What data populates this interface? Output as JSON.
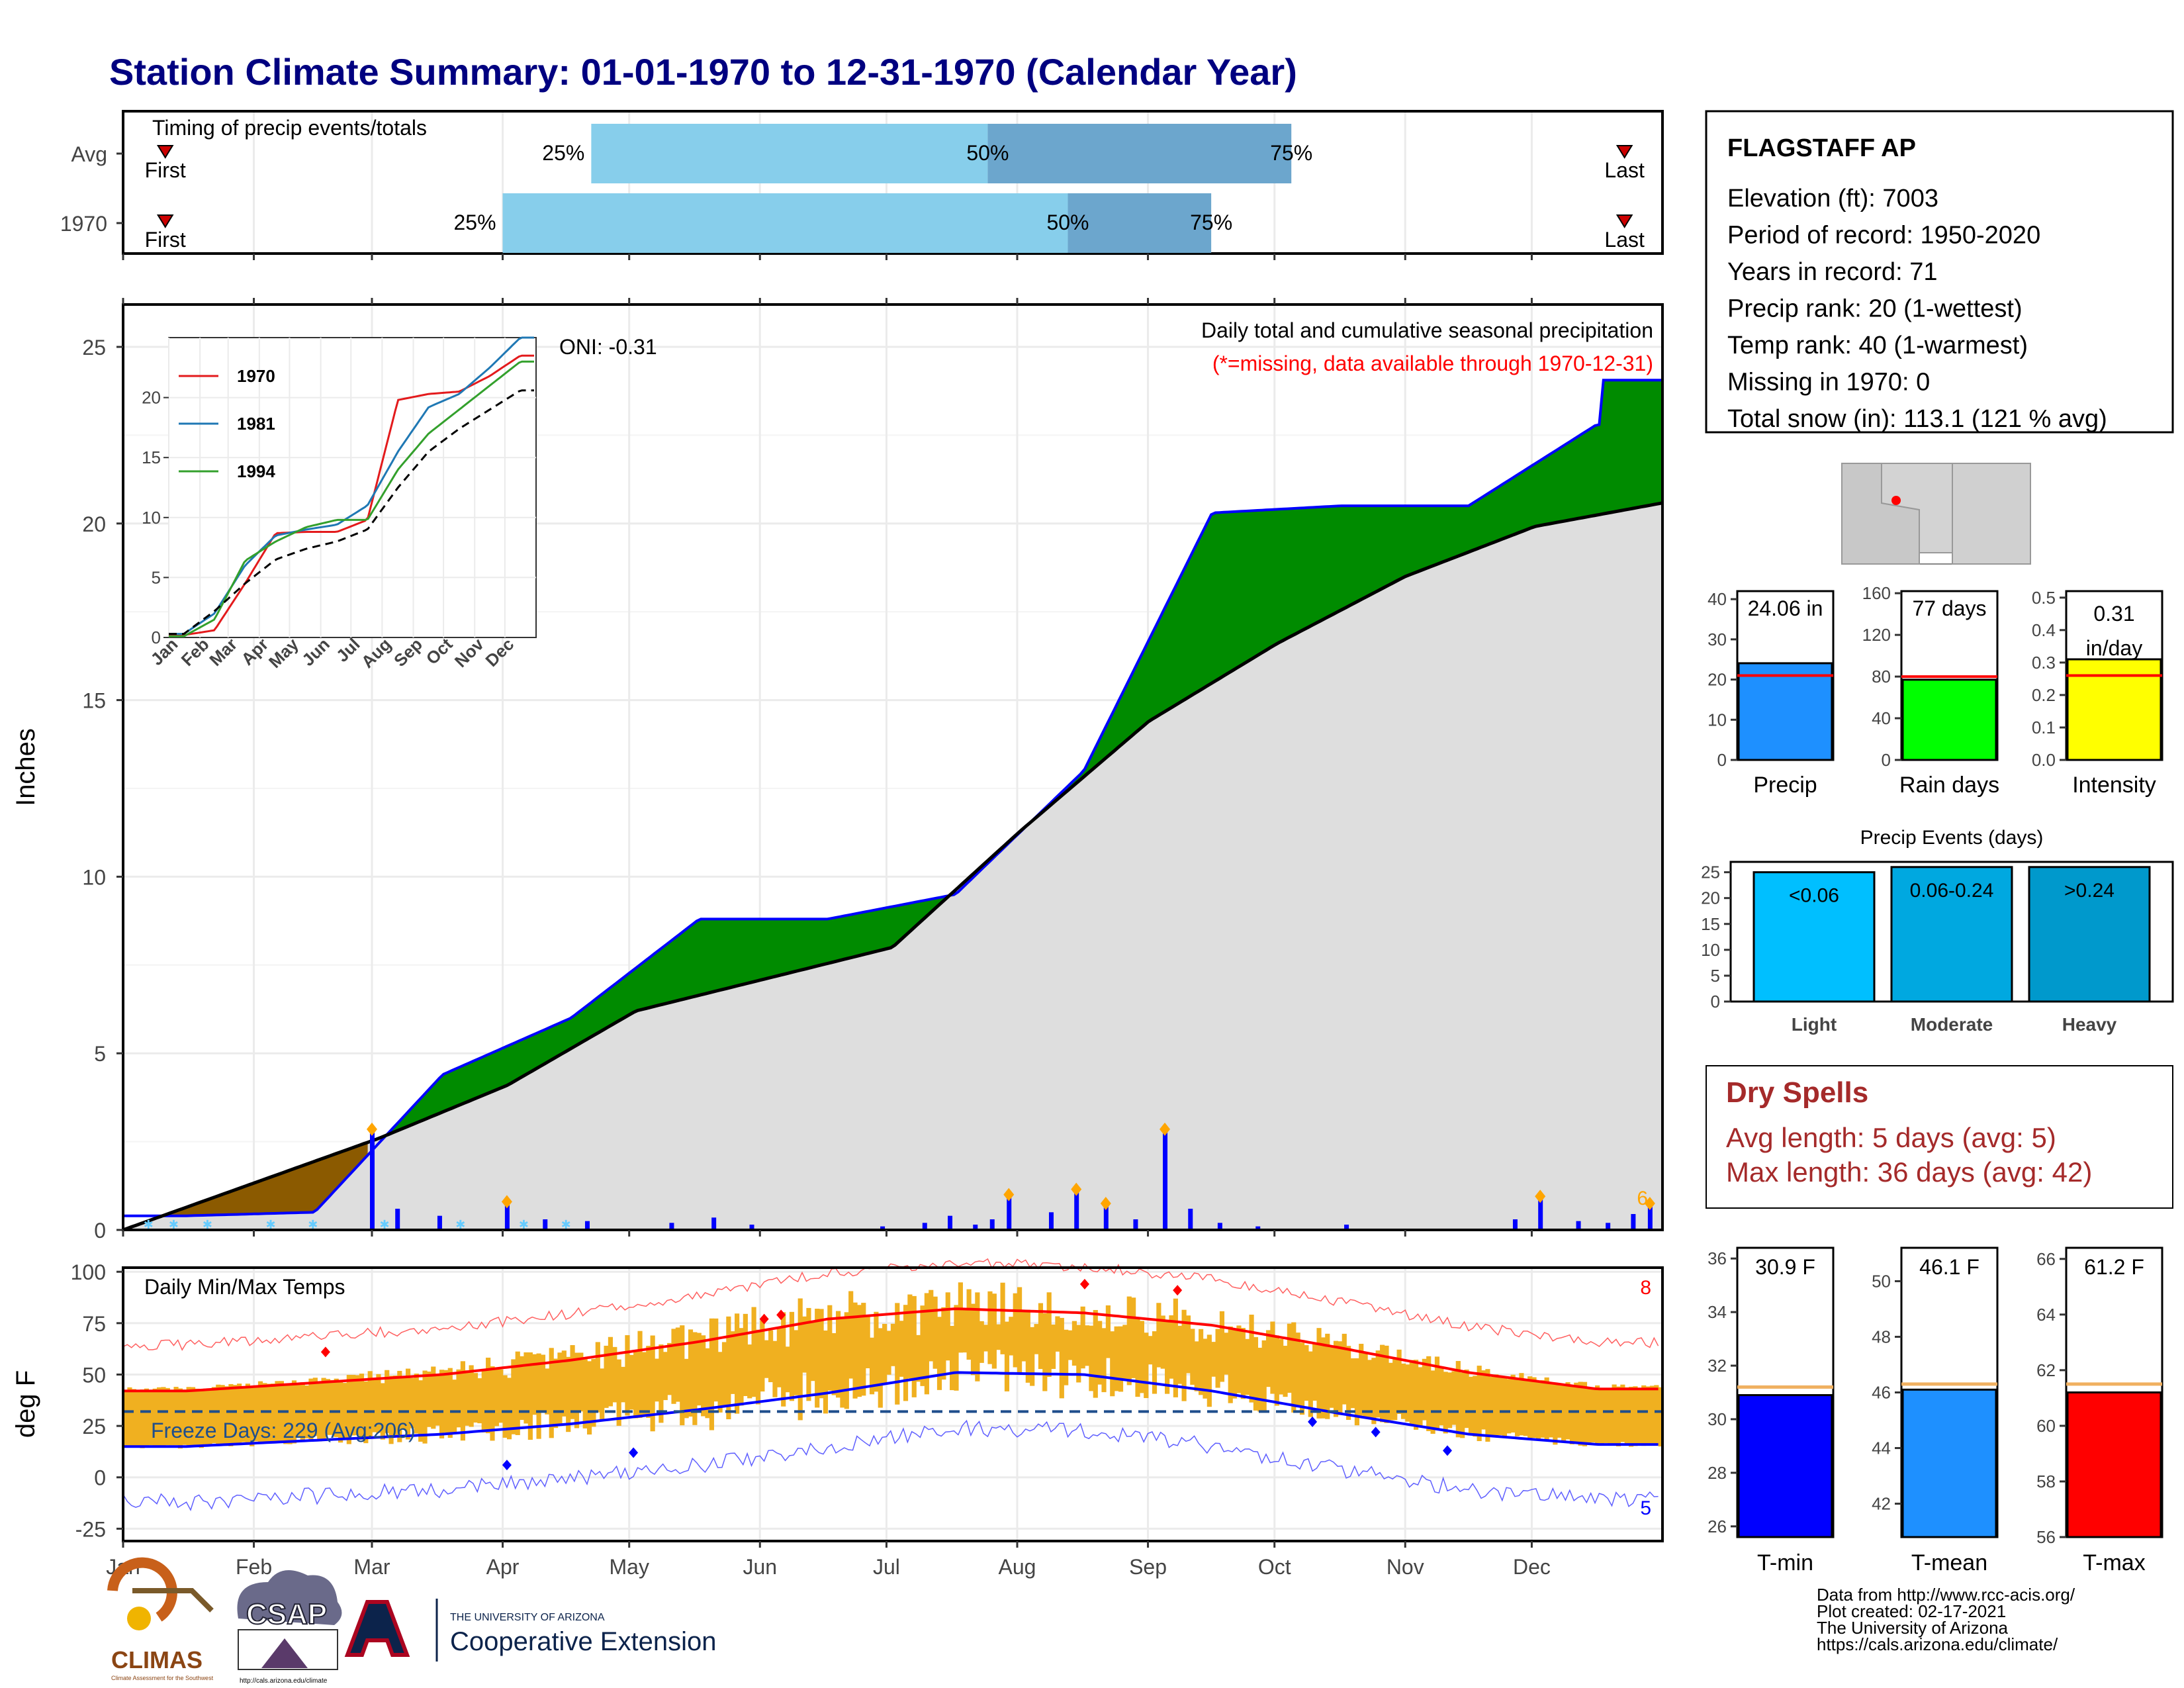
{
  "header": {
    "title": "Station Climate Summary: 01-01-1970 to 12-31-1970 (Calendar Year)"
  },
  "months": [
    "Jan",
    "Feb",
    "Mar",
    "Apr",
    "May",
    "Jun",
    "Jul",
    "Aug",
    "Sep",
    "Oct",
    "Nov",
    "Dec"
  ],
  "timing": {
    "title": "Timing of precip events/totals",
    "rows": [
      {
        "label": "Avg",
        "first": "First",
        "last": "Last",
        "p25": "25%",
        "p50": "50%",
        "p75": "75%",
        "day25": 111,
        "day50": 205,
        "day75": 277
      },
      {
        "label": "1970",
        "first": "First",
        "last": "Last",
        "p25": "25%",
        "p50": "50%",
        "p75": "75%",
        "day25": 90,
        "day50": 224,
        "day75": 258
      }
    ]
  },
  "station": {
    "name": "FLAGSTAFF AP",
    "lines": [
      "Elevation (ft): 7003",
      "Period of record: 1950-2020",
      "Years in record: 71",
      "Precip rank: 20 (1-wettest)",
      "Temp rank: 40 (1-warmest)",
      "Missing in 1970: 0",
      "Total snow (in): 113.1 (121 % avg)"
    ]
  },
  "precip_panel": {
    "ylabel": "Inches",
    "title": "Daily total and cumulative seasonal precipitation",
    "subtitle": "(*=missing, data available through 1970-12-31)",
    "oni": "ONI: -0.31",
    "count_label": "6"
  },
  "inset": {
    "series": [
      {
        "name": "1970",
        "color": "#e31a1c"
      },
      {
        "name": "1981",
        "color": "#1f78b4"
      },
      {
        "name": "1994",
        "color": "#33a02c"
      }
    ]
  },
  "summary_bars": [
    {
      "label": "Precip",
      "value_text": "24.06 in",
      "value": 24.06,
      "avg": 21.0,
      "ymax": 42,
      "ticks": [
        0,
        10,
        20,
        30,
        40
      ],
      "color": "#1e90ff"
    },
    {
      "label": "Rain days",
      "value_text": "77 days",
      "value": 77,
      "avg": 80,
      "ymax": 162,
      "ticks": [
        0,
        40,
        80,
        120,
        160
      ],
      "color": "#00ff00"
    },
    {
      "label": "Intensity",
      "value_text": "0.31 in/day",
      "value": 0.31,
      "avg": 0.26,
      "ymax": 0.52,
      "ticks": [
        "0.0",
        "0.1",
        "0.2",
        "0.3",
        "0.4",
        "0.5"
      ],
      "color": "#ffff00"
    }
  ],
  "events": {
    "title": "Precip Events (days)",
    "bars": [
      {
        "label": "Light",
        "inner": "<0.06",
        "value": 25,
        "color": "#00bfff"
      },
      {
        "label": "Moderate",
        "inner": "0.06-0.24",
        "value": 26,
        "color": "#00a8e0"
      },
      {
        "label": "Heavy",
        "inner": ">0.24",
        "value": 26,
        "color": "#0099cc"
      }
    ],
    "ticks": [
      0,
      5,
      10,
      15,
      20,
      25
    ]
  },
  "dry_spells": {
    "title": "Dry Spells",
    "avg_line": "Avg length: 5 days (avg: 5)",
    "max_line": "Max length: 36 days (avg: 42)"
  },
  "temp_panel": {
    "ylabel": "deg F",
    "title": "Daily Min/Max Temps",
    "freeze": "Freeze Days: 229 (Avg:206)",
    "count_hi": "8",
    "count_lo": "5"
  },
  "temp_bars": [
    {
      "label": "T-min",
      "value_text": "30.9 F",
      "value": 30.9,
      "avg": 31.2,
      "ymin": 25.6,
      "ymax": 36.4,
      "ticks": [
        26,
        28,
        30,
        32,
        34,
        36
      ],
      "color": "#0000ff"
    },
    {
      "label": "T-mean",
      "value_text": "46.1 F",
      "value": 46.1,
      "avg": 46.3,
      "ymin": 40.8,
      "ymax": 51.2,
      "ticks": [
        42,
        44,
        46,
        48,
        50
      ],
      "color": "#1e90ff"
    },
    {
      "label": "T-max",
      "value_text": "61.2 F",
      "value": 61.2,
      "avg": 61.5,
      "ymin": 56,
      "ymax": 66.4,
      "ticks": [
        56,
        58,
        60,
        62,
        64,
        66
      ],
      "color": "#ff0000"
    }
  ],
  "credits": {
    "lines": [
      "Data from http://www.rcc-acis.org/",
      "Plot created: 02-17-2021",
      "The University of Arizona",
      "https://cals.arizona.edu/climate/"
    ],
    "climas": "CLIMAS",
    "climas_sub": "Climate Assessment for the Southwest",
    "csap": "CSAP",
    "csap_url": "http://cals.arizona.edu/climate",
    "ua_small": "THE UNIVERSITY OF ARIZONA",
    "ua_big": "Cooperative Extension"
  },
  "chart_data": [
    {
      "type": "line",
      "title": "Daily total and cumulative seasonal precipitation",
      "ylabel": "Inches",
      "ylim": [
        0,
        26
      ],
      "x": [
        "Jan",
        "Feb",
        "Mar",
        "Apr",
        "May",
        "Jun",
        "Jul",
        "Aug",
        "Sep",
        "Oct",
        "Nov",
        "Dec"
      ],
      "series": [
        {
          "name": "1970",
          "values": [
            0.4,
            0.5,
            4.4,
            6.0,
            8.8,
            8.8,
            9.5,
            13.0,
            20.3,
            20.5,
            20.5,
            22.8
          ],
          "end_total": 24.06
        },
        {
          "values": [
            0.0,
            1.3,
            2.6,
            4.1,
            6.2,
            7.1,
            8.0,
            11.3,
            14.4,
            16.6,
            18.5,
            19.9
          ]
        }
      ],
      "daily_peaks": [
        {
          "date": "Mar 1",
          "value": 2.85
        },
        {
          "date": "Sep 4",
          "value": 2.85
        },
        {
          "date": "Dec 30",
          "value": 0.75
        }
      ]
    },
    {
      "type": "line",
      "xlabel": "",
      "ylabel": "",
      "ylim": [
        0,
        25
      ],
      "x": [
        "Jan",
        "Feb",
        "Mar",
        "Apr",
        "May",
        "Jun",
        "Jul",
        "Aug",
        "Sep",
        "Oct",
        "Nov",
        "Dec"
      ],
      "series": [
        {
          "name": "1970",
          "values": [
            0.2,
            0.6,
            4.5,
            8.7,
            8.8,
            8.8,
            9.8,
            19.8,
            20.3,
            20.5,
            21.8,
            23.5
          ]
        },
        {
          "name": "1981",
          "values": [
            0.3,
            2.0,
            6.0,
            8.5,
            9.0,
            9.4,
            11.0,
            15.5,
            19.2,
            20.3,
            22.5,
            25.0
          ]
        },
        {
          "name": "1994",
          "values": [
            0.1,
            1.5,
            6.4,
            8.0,
            9.2,
            9.8,
            9.8,
            14.0,
            17.0,
            19.0,
            21.0,
            23.0
          ]
        },
        {
          "values": [
            0.3,
            2.2,
            4.5,
            6.5,
            7.4,
            8.0,
            9.0,
            12.5,
            15.5,
            17.4,
            19.0,
            20.6
          ]
        }
      ]
    },
    {
      "type": "line",
      "title": "Daily Min/Max Temps",
      "ylabel": "deg F",
      "ylim": [
        -30,
        100
      ],
      "x": [
        "Jan",
        "Feb",
        "Mar",
        "Apr",
        "May",
        "Jun",
        "Jul",
        "Aug",
        "Sep",
        "Oct",
        "Nov",
        "Dec"
      ],
      "series": [
        {
          "name": "Normal max",
          "values": [
            42,
            46,
            50,
            57,
            66,
            77,
            82,
            80,
            74,
            63,
            51,
            43
          ]
        },
        {
          "name": "Normal min",
          "values": [
            15,
            18,
            21,
            26,
            33,
            41,
            51,
            50,
            42,
            31,
            21,
            16
          ]
        }
      ],
      "freeze_threshold": 32
    }
  ]
}
